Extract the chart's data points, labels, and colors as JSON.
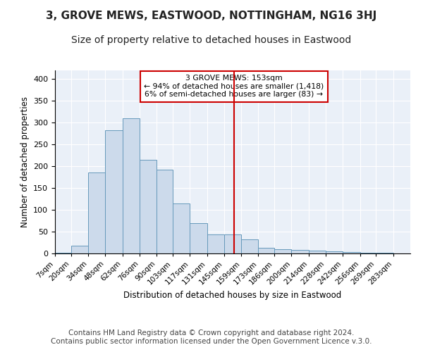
{
  "title_line1": "3, GROVE MEWS, EASTWOOD, NOTTINGHAM, NG16 3HJ",
  "title_line2": "Size of property relative to detached houses in Eastwood",
  "xlabel": "Distribution of detached houses by size in Eastwood",
  "ylabel": "Number of detached properties",
  "bar_color": "#ccdaeb",
  "bar_edge_color": "#6699bb",
  "background_color": "#eaf0f8",
  "annotation_text": "3 GROVE MEWS: 153sqm\n← 94% of detached houses are smaller (1,418)\n6% of semi-detached houses are larger (83) →",
  "annotation_box_color": "#cc0000",
  "vline_color": "#cc0000",
  "categories": [
    "7sqm",
    "20sqm",
    "34sqm",
    "48sqm",
    "62sqm",
    "76sqm",
    "90sqm",
    "103sqm",
    "117sqm",
    "131sqm",
    "145sqm",
    "159sqm",
    "173sqm",
    "186sqm",
    "200sqm",
    "214sqm",
    "228sqm",
    "242sqm",
    "256sqm",
    "269sqm",
    "283sqm"
  ],
  "values": [
    2,
    18,
    185,
    283,
    310,
    215,
    193,
    115,
    70,
    43,
    43,
    32,
    13,
    10,
    8,
    7,
    5,
    4,
    2,
    2
  ],
  "bin_edges": [
    7,
    20,
    34,
    48,
    62,
    76,
    90,
    103,
    117,
    131,
    145,
    159,
    173,
    186,
    200,
    214,
    228,
    242,
    256,
    269,
    283
  ],
  "vline_x_index": 11,
  "ylim": [
    0,
    420
  ],
  "yticks": [
    0,
    50,
    100,
    150,
    200,
    250,
    300,
    350,
    400
  ],
  "footer_text": "Contains HM Land Registry data © Crown copyright and database right 2024.\nContains public sector information licensed under the Open Government Licence v.3.0.",
  "title_fontsize": 11,
  "subtitle_fontsize": 10,
  "footer_fontsize": 7.5,
  "grid_color": "#ffffff"
}
